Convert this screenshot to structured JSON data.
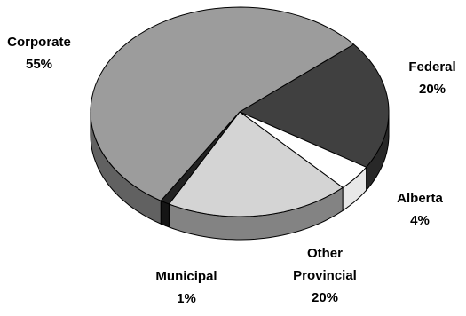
{
  "chart_data": {
    "type": "pie",
    "title": "",
    "style": "3d",
    "slices": [
      {
        "name": "Federal",
        "value": 20,
        "value_label": "20%",
        "color": "#404040"
      },
      {
        "name": "Alberta",
        "value": 4,
        "value_label": "4%",
        "color": "#ffffff"
      },
      {
        "name": "Other Provincial",
        "value": 20,
        "value_label": "20%",
        "color": "#d4d4d4"
      },
      {
        "name": "Municipal",
        "value": 1,
        "value_label": "1%",
        "color": "#222222"
      },
      {
        "name": "Corporate",
        "value": 55,
        "value_label": "55%",
        "color": "#9c9c9c"
      }
    ]
  }
}
